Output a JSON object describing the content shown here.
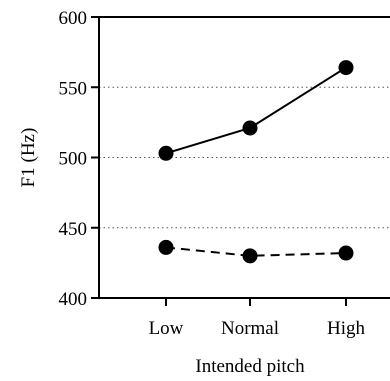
{
  "chart_data": {
    "type": "line",
    "title": "",
    "xlabel": "Intended pitch",
    "ylabel": "F1 (Hz)",
    "categories": [
      "Low",
      "Normal",
      "High"
    ],
    "yticks": [
      400,
      450,
      500,
      550,
      600
    ],
    "ylim": [
      400,
      600
    ],
    "grid": "horizontal dotted at 450, 500, 550",
    "series": [
      {
        "values": [
          503,
          521,
          564
        ],
        "line_style": "solid",
        "marker": "filled-circle",
        "color": "#000000"
      },
      {
        "values": [
          436,
          430,
          432
        ],
        "line_style": "dashed",
        "marker": "filled-circle",
        "color": "#000000"
      }
    ]
  }
}
